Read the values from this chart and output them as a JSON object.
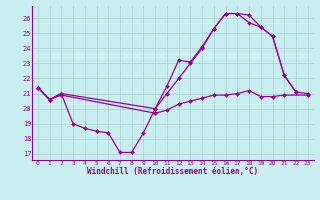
{
  "xlabel": "Windchill (Refroidissement éolien,°C)",
  "bg_color": "#c8eef0",
  "line_color": "#990099",
  "grid_color": "#aacccc",
  "xlim": [
    -0.5,
    23.5
  ],
  "ylim": [
    16.6,
    26.8
  ],
  "yticks": [
    17,
    18,
    19,
    20,
    21,
    22,
    23,
    24,
    25,
    26
  ],
  "xticks": [
    0,
    1,
    2,
    3,
    4,
    5,
    6,
    7,
    8,
    9,
    10,
    11,
    12,
    13,
    14,
    15,
    16,
    17,
    18,
    19,
    20,
    21,
    22,
    23
  ],
  "series": [
    {
      "x": [
        0,
        1,
        2,
        3,
        4,
        5,
        6,
        7,
        8,
        9,
        10,
        11,
        12,
        13,
        14,
        15,
        16,
        17,
        18,
        19,
        20,
        21,
        22
      ],
      "y": [
        21.4,
        20.6,
        21.0,
        19.0,
        18.7,
        18.5,
        18.4,
        17.1,
        17.1,
        18.4,
        20.0,
        21.5,
        23.2,
        23.1,
        24.1,
        25.3,
        26.3,
        26.3,
        26.2,
        25.4,
        24.8,
        22.2,
        21.1
      ]
    },
    {
      "x": [
        0,
        1,
        2,
        10,
        11,
        12,
        13,
        14,
        15,
        16,
        17,
        18,
        19,
        20,
        21,
        22,
        23
      ],
      "y": [
        21.4,
        20.6,
        21.0,
        20.0,
        21.0,
        22.0,
        23.0,
        24.0,
        25.3,
        26.3,
        26.3,
        25.7,
        25.4,
        24.8,
        22.2,
        21.1,
        21.0
      ]
    },
    {
      "x": [
        0,
        1,
        2,
        10,
        11,
        12,
        13,
        14,
        15,
        16,
        17,
        18,
        19,
        20,
        21,
        23
      ],
      "y": [
        21.4,
        20.6,
        20.9,
        19.7,
        19.9,
        20.3,
        20.5,
        20.7,
        20.9,
        20.9,
        21.0,
        21.2,
        20.8,
        20.8,
        20.9,
        20.9
      ]
    }
  ]
}
